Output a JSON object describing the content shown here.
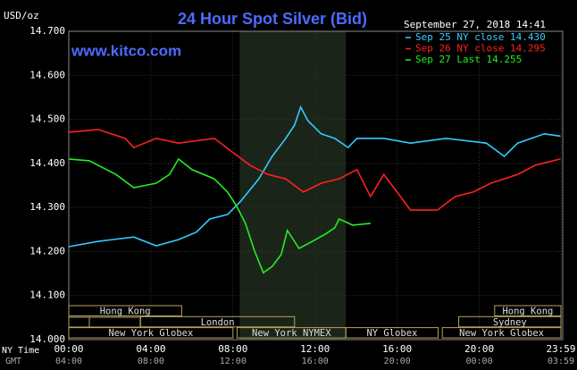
{
  "chart_data": {
    "type": "line",
    "title": "24 Hour Spot Silver (Bid)",
    "subtitle": "September 27, 2018 14:41",
    "site": "www.kitco.com",
    "y_label": "USD/oz",
    "x_label": "NY Time",
    "x2_label": "GMT",
    "xlim": [
      0,
      23.98
    ],
    "ylim": [
      14.0,
      14.7
    ],
    "xticks": [
      {
        "value": 0,
        "label": "00:00"
      },
      {
        "value": 4,
        "label": "04:00"
      },
      {
        "value": 8,
        "label": "08:00"
      },
      {
        "value": 12,
        "label": "12:00"
      },
      {
        "value": 16,
        "label": "16:00"
      },
      {
        "value": 20,
        "label": "20:00"
      },
      {
        "value": 23.98,
        "label": "23:59"
      }
    ],
    "x2_labels": [
      "04:00",
      "08:00",
      "12:00",
      "16:00",
      "20:00",
      "00:00",
      "03:59"
    ],
    "yticks": [
      {
        "value": 14.0,
        "label": "14.000"
      },
      {
        "value": 14.1,
        "label": "14.100"
      },
      {
        "value": 14.2,
        "label": "14.200"
      },
      {
        "value": 14.3,
        "label": "14.300"
      },
      {
        "value": 14.4,
        "label": "14.400"
      },
      {
        "value": 14.5,
        "label": "14.500"
      },
      {
        "value": 14.6,
        "label": "14.600"
      },
      {
        "value": 14.7,
        "label": "14.700"
      }
    ],
    "grid": true,
    "highlight_x": [
      8.33,
      13.5
    ],
    "sessions": [
      {
        "label": "Hong Kong",
        "row": 0,
        "start": 0,
        "end": 5.5
      },
      {
        "label": "Hong Kong",
        "row": 0,
        "start": 20.75,
        "end": 23.98
      },
      {
        "label": "London",
        "row": 1,
        "start": 3.5,
        "end": 11
      },
      {
        "label": "Sydney",
        "row": 1,
        "start": 19,
        "end": 23.98
      },
      {
        "label": "New York Globex",
        "row": 2,
        "start": 0,
        "end": 8
      },
      {
        "label": "New York NYMEX",
        "row": 2,
        "start": 8.2,
        "end": 13.5
      },
      {
        "label": "NY Globex",
        "row": 2,
        "start": 13.5,
        "end": 18
      },
      {
        "label": "New York Globex",
        "row": 2,
        "start": 18.2,
        "end": 23.98
      }
    ],
    "series": [
      {
        "name": "Sep 25 NY close 14.430",
        "color": "#33ccff",
        "x": [
          0,
          1.43,
          3.17,
          4.26,
          5.35,
          6.22,
          6.87,
          7.74,
          8.39,
          9.26,
          9.91,
          10.57,
          11.0,
          11.3,
          11.65,
          12.3,
          12.96,
          13.61,
          14.04,
          15.35,
          16.65,
          18.39,
          20.35,
          21.22,
          21.87,
          23.17,
          23.96
        ],
        "values": [
          14.211,
          14.223,
          14.233,
          14.213,
          14.227,
          14.244,
          14.274,
          14.284,
          14.315,
          14.365,
          14.416,
          14.457,
          14.487,
          14.528,
          14.497,
          14.467,
          14.457,
          14.436,
          14.457,
          14.457,
          14.446,
          14.457,
          14.446,
          14.416,
          14.446,
          14.467,
          14.462
        ]
      },
      {
        "name": "Sep 26 NY close 14.295",
        "color": "#ff2020",
        "x": [
          0,
          1.43,
          2.74,
          3.17,
          4.26,
          5.35,
          7.09,
          7.96,
          8.83,
          9.7,
          10.57,
          11.43,
          12.3,
          13.17,
          14.04,
          14.7,
          15.35,
          16.0,
          16.65,
          17.96,
          18.83,
          19.7,
          20.57,
          21.87,
          22.74,
          23.96
        ],
        "values": [
          14.471,
          14.477,
          14.457,
          14.436,
          14.457,
          14.446,
          14.457,
          14.426,
          14.396,
          14.375,
          14.365,
          14.335,
          14.355,
          14.365,
          14.386,
          14.325,
          14.375,
          14.335,
          14.294,
          14.294,
          14.325,
          14.335,
          14.355,
          14.375,
          14.396,
          14.41
        ]
      },
      {
        "name": "Sep 27 Last 14.255",
        "color": "#22ee22",
        "x": [
          0,
          1.0,
          2.3,
          3.17,
          4.26,
          4.91,
          5.35,
          6.0,
          7.09,
          7.74,
          8.17,
          8.61,
          9.04,
          9.48,
          9.91,
          10.35,
          10.65,
          11.22,
          11.87,
          12.52,
          12.96,
          13.17,
          13.83,
          14.7
        ],
        "values": [
          14.41,
          14.406,
          14.375,
          14.345,
          14.355,
          14.375,
          14.41,
          14.386,
          14.365,
          14.335,
          14.304,
          14.264,
          14.203,
          14.152,
          14.166,
          14.193,
          14.248,
          14.207,
          14.223,
          14.24,
          14.254,
          14.274,
          14.26,
          14.264
        ]
      }
    ]
  }
}
